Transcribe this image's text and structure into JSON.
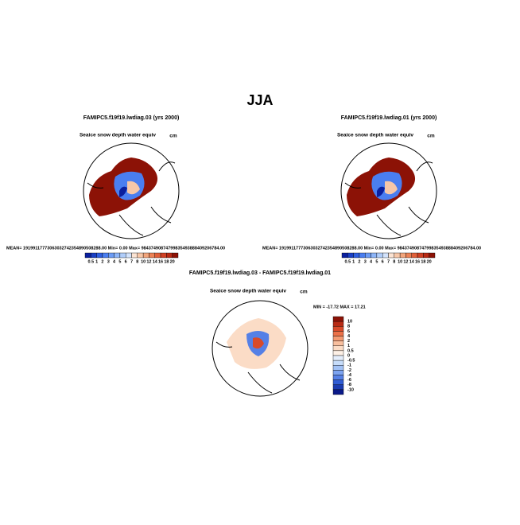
{
  "title": "JJA",
  "panels": [
    {
      "title": "FAMIPC5.f19f19.lwdiag.03 (yrs 2000)",
      "subtitle": "Seaice snow depth water equiv",
      "units": "cm",
      "stats": "MEAN= 19199117773063032742354890508288.00   Min=    0.00   Max= 98437490874799835493888409206784.00"
    },
    {
      "title": "FAMIPC5.f19f19.lwdiag.01 (yrs 2000)",
      "subtitle": "Seaice snow depth water equiv",
      "units": "cm",
      "stats": "MEAN= 19199117773063032742354890508288.00   Min=    0.00   Max= 98437490874799835493888409206784.00"
    },
    {
      "title": "FAMIPC5.f19f19.lwdiag.03 - FAMIPC5.f19f19.lwdiag.01",
      "subtitle": "Seaice snow depth water equiv",
      "units": "cm",
      "stats": "MIN = -17.72  MAX =  17.21"
    }
  ],
  "colorbar": {
    "labels": [
      0.5,
      1,
      2,
      3,
      4,
      5,
      6,
      7,
      8,
      10,
      12,
      14,
      16,
      18,
      20
    ],
    "colors": [
      "#0a1f9e",
      "#1a3fc4",
      "#2f5fe0",
      "#4a7ef0",
      "#6b9bf5",
      "#8db5f8",
      "#b0cdfa",
      "#d3e3fc",
      "#fbe3d3",
      "#f7c7a8",
      "#f2a57c",
      "#ec8256",
      "#e0603a",
      "#cf4124",
      "#b82a14",
      "#8c1206"
    ]
  },
  "diff_colorbar": {
    "labels": [
      10,
      8,
      6,
      4,
      2,
      1,
      0.5,
      0,
      -0.5,
      -1,
      -2,
      -4,
      -6,
      -8,
      -10
    ],
    "colors": [
      "#8c1206",
      "#b82a14",
      "#d84a2a",
      "#ec7148",
      "#f49a72",
      "#f8bf9e",
      "#fbdcc6",
      "#fdf0e6",
      "#e4eefc",
      "#c6dcfa",
      "#a2c2f6",
      "#7ca3f0",
      "#5580e6",
      "#2f5cd4",
      "#1a3bb0",
      "#0a1a8a"
    ]
  }
}
